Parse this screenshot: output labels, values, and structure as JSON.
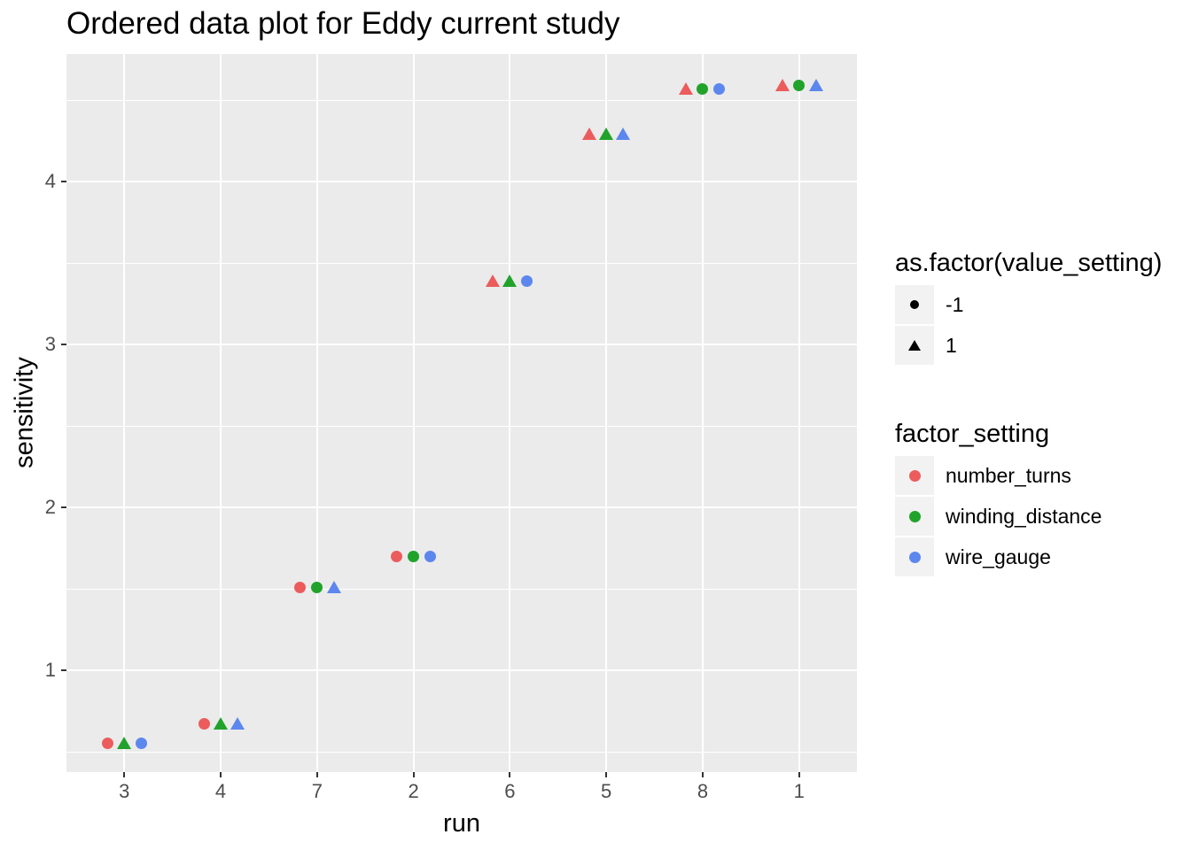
{
  "title": "Ordered data plot for Eddy current study",
  "axes": {
    "x": {
      "label": "run",
      "tick_labels": [
        "3",
        "4",
        "7",
        "2",
        "6",
        "5",
        "8",
        "1"
      ]
    },
    "y": {
      "label": "sensitivity",
      "tick_labels": [
        "1",
        "2",
        "3",
        "4"
      ]
    }
  },
  "legends": [
    {
      "title": "as.factor(value_setting)",
      "entries": [
        {
          "marker": "circle",
          "color": "#000000",
          "label": "-1"
        },
        {
          "marker": "triangle",
          "color": "#000000",
          "label": "1"
        }
      ]
    },
    {
      "title": "factor_setting",
      "entries": [
        {
          "marker": "circle",
          "color": "#EC5C5C",
          "label": "number_turns"
        },
        {
          "marker": "circle",
          "color": "#21A32B",
          "label": "winding_distance"
        },
        {
          "marker": "circle",
          "color": "#5C87EE",
          "label": "wire_gauge"
        }
      ]
    }
  ],
  "colors": {
    "panel_background": "#EBEBEB",
    "gridline": "#FFFFFF",
    "legend_key_background": "#F2F2F2",
    "tick_label": "#4D4D4D",
    "tick_mark": "#333333",
    "title_text": "#000000"
  },
  "chart_data": {
    "type": "scatter",
    "title": "Ordered data plot for Eddy current study",
    "xlabel": "run",
    "ylabel": "sensitivity",
    "x_categories": [
      "3",
      "4",
      "7",
      "2",
      "6",
      "5",
      "8",
      "1"
    ],
    "ylim": [
      0.375,
      4.783
    ],
    "y_major_gridlines": [
      1,
      2,
      3,
      4
    ],
    "y_minor_gridlines": [
      0.5,
      1.5,
      2.5,
      3.5,
      4.5
    ],
    "grid": true,
    "legend_position": "right",
    "shape_encoding": {
      "-1": "circle",
      "1": "triangle"
    },
    "dodge": "points horizontally dodged by factor within each run",
    "series": [
      {
        "name": "number_turns",
        "color": "#EC5C5C",
        "points": [
          {
            "run": "3",
            "sensitivity": 0.55,
            "value_setting": -1
          },
          {
            "run": "4",
            "sensitivity": 0.67,
            "value_setting": -1
          },
          {
            "run": "7",
            "sensitivity": 1.51,
            "value_setting": -1
          },
          {
            "run": "2",
            "sensitivity": 1.7,
            "value_setting": -1
          },
          {
            "run": "6",
            "sensitivity": 3.39,
            "value_setting": 1
          },
          {
            "run": "5",
            "sensitivity": 4.29,
            "value_setting": 1
          },
          {
            "run": "8",
            "sensitivity": 4.57,
            "value_setting": 1
          },
          {
            "run": "1",
            "sensitivity": 4.59,
            "value_setting": 1
          }
        ]
      },
      {
        "name": "winding_distance",
        "color": "#21A32B",
        "points": [
          {
            "run": "3",
            "sensitivity": 0.55,
            "value_setting": 1
          },
          {
            "run": "4",
            "sensitivity": 0.67,
            "value_setting": 1
          },
          {
            "run": "7",
            "sensitivity": 1.51,
            "value_setting": -1
          },
          {
            "run": "2",
            "sensitivity": 1.7,
            "value_setting": -1
          },
          {
            "run": "6",
            "sensitivity": 3.39,
            "value_setting": 1
          },
          {
            "run": "5",
            "sensitivity": 4.29,
            "value_setting": 1
          },
          {
            "run": "8",
            "sensitivity": 4.57,
            "value_setting": -1
          },
          {
            "run": "1",
            "sensitivity": 4.59,
            "value_setting": -1
          }
        ]
      },
      {
        "name": "wire_gauge",
        "color": "#5C87EE",
        "points": [
          {
            "run": "3",
            "sensitivity": 0.55,
            "value_setting": -1
          },
          {
            "run": "4",
            "sensitivity": 0.67,
            "value_setting": 1
          },
          {
            "run": "7",
            "sensitivity": 1.51,
            "value_setting": 1
          },
          {
            "run": "2",
            "sensitivity": 1.7,
            "value_setting": -1
          },
          {
            "run": "6",
            "sensitivity": 3.39,
            "value_setting": -1
          },
          {
            "run": "5",
            "sensitivity": 4.29,
            "value_setting": 1
          },
          {
            "run": "8",
            "sensitivity": 4.57,
            "value_setting": -1
          },
          {
            "run": "1",
            "sensitivity": 4.59,
            "value_setting": 1
          }
        ]
      }
    ]
  }
}
